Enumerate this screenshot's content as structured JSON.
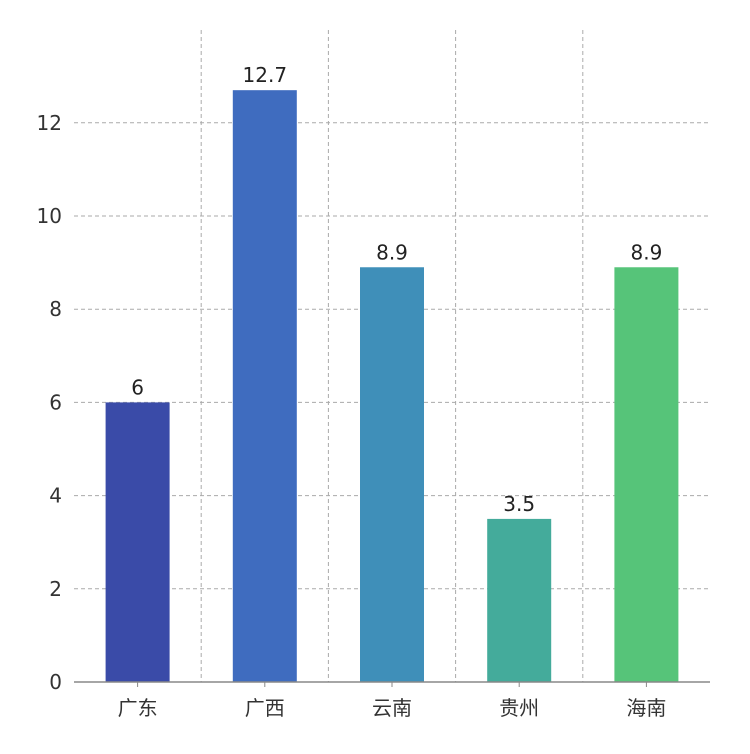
{
  "chart_data": {
    "type": "bar",
    "categories": [
      "广东",
      "广西",
      "云南",
      "贵州",
      "海南"
    ],
    "values": [
      6,
      12.7,
      8.9,
      3.5,
      8.9
    ],
    "value_labels": [
      "6",
      "12.7",
      "8.9",
      "3.5",
      "8.9"
    ],
    "colors": [
      "#3a4ba8",
      "#3f6cbf",
      "#3f8fb9",
      "#44ab9b",
      "#56c479"
    ],
    "yticks": [
      0,
      2,
      4,
      6,
      8,
      10,
      12
    ],
    "ylim": [
      0,
      13.2
    ],
    "grid": true,
    "title": "",
    "xlabel": "",
    "ylabel": ""
  }
}
